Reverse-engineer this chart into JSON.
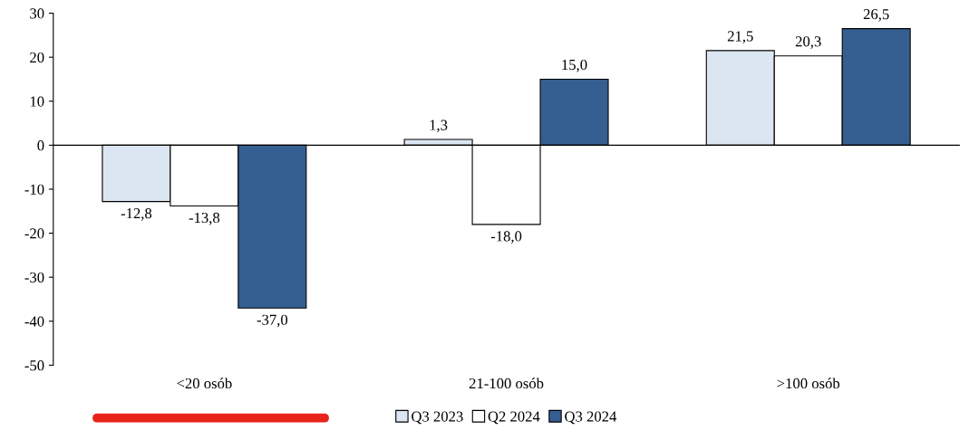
{
  "chart_data": {
    "type": "bar",
    "categories": [
      "<20 osób",
      "21-100 osób",
      ">100 osób"
    ],
    "series": [
      {
        "name": "Q3 2023",
        "color": "#dce6f2",
        "values": [
          -12.8,
          1.3,
          21.5
        ],
        "value_labels": [
          "-12,8",
          "1,3",
          "21,5"
        ]
      },
      {
        "name": "Q2 2024",
        "color": "#ffffff",
        "values": [
          -13.8,
          -18.0,
          20.3
        ],
        "value_labels": [
          "-13,8",
          "-18,0",
          "20,3"
        ]
      },
      {
        "name": "Q3 2024",
        "color": "#365f91",
        "values": [
          -37.0,
          15.0,
          26.5
        ],
        "value_labels": [
          "-37,0",
          "15,0",
          "26,5"
        ]
      }
    ],
    "ylim": [
      -50,
      30
    ],
    "yticks": [
      -50,
      -40,
      -30,
      -20,
      -10,
      0,
      10,
      20,
      30
    ],
    "legend": "bottom"
  }
}
